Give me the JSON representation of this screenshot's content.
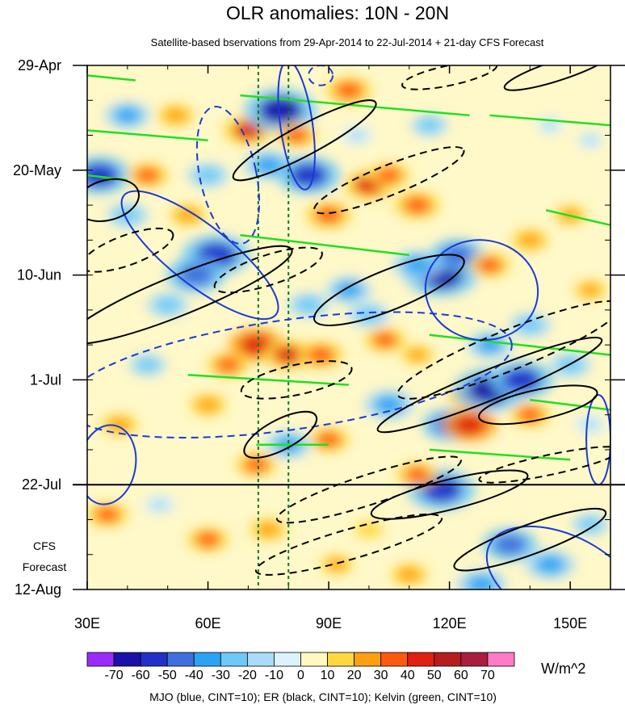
{
  "chart_data": {
    "type": "heatmap",
    "title": "OLR anomalies: 10N - 20N",
    "subtitle": "Satellite-based bservations from 29-Apr-2014 to 22-Jul-2014 + 21-day CFS Forecast",
    "x_axis": {
      "range": [
        30,
        160
      ],
      "ticks": [
        30,
        60,
        90,
        120,
        150
      ],
      "tick_labels": [
        "30E",
        "60E",
        "90E",
        "120E",
        "150E"
      ]
    },
    "y_axis": {
      "range_days": [
        0,
        105
      ],
      "tick_days": [
        0,
        21,
        42,
        63,
        84,
        105
      ],
      "tick_labels": [
        "29-Apr",
        "20-May",
        "10-Jun",
        "1-Jul",
        "22-Jul",
        "12-Aug"
      ],
      "observation_end_day": 84
    },
    "forecast_label": [
      "CFS",
      "Forecast"
    ],
    "reference_longitudes": [
      72.5,
      80
    ],
    "colorbar": {
      "labels": [
        "-70",
        "-60",
        "-50",
        "-40",
        "-30",
        "-20",
        "-10",
        "0",
        "10",
        "20",
        "30",
        "40",
        "50",
        "60",
        "70"
      ],
      "colors": [
        "#9a2cff",
        "#1a12a8",
        "#2030c8",
        "#3f6fdc",
        "#2aa4f2",
        "#6ec8f8",
        "#a8dcf8",
        "#ddf2fc",
        "#fff8c0",
        "#ffd840",
        "#ffa010",
        "#ff5a10",
        "#e02010",
        "#b41e1e",
        "#a81e3c",
        "#ff7ac8"
      ],
      "units": "W/m^2"
    },
    "footer": "MJO (blue, CINT=10); ER (black, CINT=10); Kelvin (green, CINT=10)",
    "filter_colors": {
      "MJO": "#1a3ad8",
      "ER": "#000000",
      "Kelvin": "#20e020"
    },
    "anomaly_blobs": [
      {
        "lon": 40,
        "day": 10,
        "v": -35
      },
      {
        "lon": 33,
        "day": 22,
        "v": -55
      },
      {
        "lon": 40,
        "day": 30,
        "v": -30
      },
      {
        "lon": 45,
        "day": 22,
        "v": 30
      },
      {
        "lon": 52,
        "day": 10,
        "v": 25
      },
      {
        "lon": 62,
        "day": 38,
        "v": -60
      },
      {
        "lon": 57,
        "day": 42,
        "v": -50
      },
      {
        "lon": 50,
        "day": 48,
        "v": -30
      },
      {
        "lon": 60,
        "day": 22,
        "v": -30
      },
      {
        "lon": 55,
        "day": 30,
        "v": 25
      },
      {
        "lon": 70,
        "day": 13,
        "v": 40
      },
      {
        "lon": 75,
        "day": 20,
        "v": -40
      },
      {
        "lon": 78,
        "day": 9,
        "v": -65
      },
      {
        "lon": 82,
        "day": 14,
        "v": 30
      },
      {
        "lon": 85,
        "day": 22,
        "v": -55
      },
      {
        "lon": 90,
        "day": 30,
        "v": 35
      },
      {
        "lon": 95,
        "day": 5,
        "v": 35
      },
      {
        "lon": 97,
        "day": 14,
        "v": -20
      },
      {
        "lon": 100,
        "day": 24,
        "v": 40
      },
      {
        "lon": 105,
        "day": 22,
        "v": 30
      },
      {
        "lon": 112,
        "day": 28,
        "v": 35
      },
      {
        "lon": 115,
        "day": 12,
        "v": -25
      },
      {
        "lon": 118,
        "day": 42,
        "v": -65
      },
      {
        "lon": 112,
        "day": 40,
        "v": -40
      },
      {
        "lon": 122,
        "day": 38,
        "v": -45
      },
      {
        "lon": 130,
        "day": 40,
        "v": 30
      },
      {
        "lon": 140,
        "day": 35,
        "v": 25
      },
      {
        "lon": 150,
        "day": 30,
        "v": 20
      },
      {
        "lon": 145,
        "day": 12,
        "v": -15
      },
      {
        "lon": 72,
        "day": 56,
        "v": 45
      },
      {
        "lon": 80,
        "day": 58,
        "v": 40
      },
      {
        "lon": 88,
        "day": 58,
        "v": 35
      },
      {
        "lon": 65,
        "day": 60,
        "v": 30
      },
      {
        "lon": 95,
        "day": 45,
        "v": -35
      },
      {
        "lon": 100,
        "day": 50,
        "v": -30
      },
      {
        "lon": 85,
        "day": 48,
        "v": -30
      },
      {
        "lon": 104,
        "day": 55,
        "v": 30
      },
      {
        "lon": 112,
        "day": 58,
        "v": 20
      },
      {
        "lon": 130,
        "day": 56,
        "v": -35
      },
      {
        "lon": 140,
        "day": 52,
        "v": -30
      },
      {
        "lon": 150,
        "day": 60,
        "v": -30
      },
      {
        "lon": 105,
        "day": 68,
        "v": -40
      },
      {
        "lon": 120,
        "day": 72,
        "v": -45
      },
      {
        "lon": 125,
        "day": 66,
        "v": 35
      },
      {
        "lon": 130,
        "day": 65,
        "v": -65
      },
      {
        "lon": 138,
        "day": 63,
        "v": -55
      },
      {
        "lon": 125,
        "day": 72,
        "v": 45
      },
      {
        "lon": 140,
        "day": 70,
        "v": 30
      },
      {
        "lon": 118,
        "day": 85,
        "v": -60
      },
      {
        "lon": 112,
        "day": 82,
        "v": 30
      },
      {
        "lon": 90,
        "day": 75,
        "v": 30
      },
      {
        "lon": 80,
        "day": 76,
        "v": -35
      },
      {
        "lon": 72,
        "day": 80,
        "v": 30
      },
      {
        "lon": 60,
        "day": 68,
        "v": 25
      },
      {
        "lon": 45,
        "day": 60,
        "v": -25
      },
      {
        "lon": 38,
        "day": 72,
        "v": 25
      },
      {
        "lon": 35,
        "day": 90,
        "v": 30
      },
      {
        "lon": 48,
        "day": 88,
        "v": -20
      },
      {
        "lon": 60,
        "day": 95,
        "v": 30
      },
      {
        "lon": 75,
        "day": 93,
        "v": 25
      },
      {
        "lon": 92,
        "day": 100,
        "v": 20
      },
      {
        "lon": 100,
        "day": 93,
        "v": 15
      },
      {
        "lon": 135,
        "day": 96,
        "v": -45
      },
      {
        "lon": 145,
        "day": 100,
        "v": -40
      },
      {
        "lon": 128,
        "day": 104,
        "v": -40
      },
      {
        "lon": 110,
        "day": 102,
        "v": 25
      },
      {
        "lon": 155,
        "day": 92,
        "v": -25
      },
      {
        "lon": 155,
        "day": 15,
        "v": -15
      },
      {
        "lon": 155,
        "day": 45,
        "v": 20
      },
      {
        "lon": 155,
        "day": 72,
        "v": -20
      }
    ],
    "mjo_contours": [
      {
        "lon": 82,
        "day": 12,
        "rlon": 4,
        "rday": 13,
        "rot": -8,
        "dash": false
      },
      {
        "lon": 58,
        "day": 38,
        "rlon": 24,
        "rday": 6,
        "rot": 38,
        "dash": false
      },
      {
        "lon": 65,
        "day": 22,
        "rlon": 7,
        "rday": 14,
        "rot": -12,
        "dash": true
      },
      {
        "lon": 80,
        "day": 62,
        "rlon": 56,
        "rday": 11,
        "rot": -8,
        "dash": true
      },
      {
        "lon": 128,
        "day": 45,
        "rlon": 14,
        "rday": 10,
        "rot": 8,
        "dash": false
      },
      {
        "lon": 35,
        "day": 80,
        "rlon": 7,
        "rday": 8,
        "rot": 10,
        "dash": false
      },
      {
        "lon": 148,
        "day": 103,
        "rlon": 20,
        "rday": 9,
        "rot": 25,
        "dash": false
      },
      {
        "lon": 157,
        "day": 75,
        "rlon": 3,
        "rday": 9,
        "rot": 0,
        "dash": false
      },
      {
        "lon": 88,
        "day": 2,
        "rlon": 3,
        "rday": 2,
        "rot": 0,
        "dash": true
      }
    ],
    "er_contours": [
      {
        "lon": 35,
        "day": 27,
        "rlon": 8,
        "rday": 4,
        "rot": -15,
        "dash": false
      },
      {
        "lon": 84,
        "day": 15,
        "rlon": 20,
        "rday": 3,
        "rot": -28,
        "dash": false
      },
      {
        "lon": 105,
        "day": 23,
        "rlon": 20,
        "rday": 3,
        "rot": -22,
        "dash": true
      },
      {
        "lon": 147,
        "day": 1,
        "rlon": 14,
        "rday": 2,
        "rot": -18,
        "dash": false
      },
      {
        "lon": 120,
        "day": 2,
        "rlon": 12,
        "rday": 2,
        "rot": -12,
        "dash": true
      },
      {
        "lon": 40,
        "day": 37,
        "rlon": 12,
        "rday": 3,
        "rot": -20,
        "dash": true
      },
      {
        "lon": 53,
        "day": 46,
        "rlon": 30,
        "rday": 4,
        "rot": -22,
        "dash": false
      },
      {
        "lon": 75,
        "day": 41,
        "rlon": 14,
        "rday": 3,
        "rot": -18,
        "dash": true
      },
      {
        "lon": 105,
        "day": 45,
        "rlon": 20,
        "rday": 4,
        "rot": -22,
        "dash": false
      },
      {
        "lon": 135,
        "day": 57,
        "rlon": 30,
        "rday": 4,
        "rot": -22,
        "dash": true
      },
      {
        "lon": 82,
        "day": 63,
        "rlon": 14,
        "rday": 3,
        "rot": -12,
        "dash": true
      },
      {
        "lon": 78,
        "day": 74,
        "rlon": 10,
        "rday": 3,
        "rot": -28,
        "dash": false
      },
      {
        "lon": 130,
        "day": 64,
        "rlon": 30,
        "rday": 3,
        "rot": -22,
        "dash": false
      },
      {
        "lon": 100,
        "day": 85,
        "rlon": 24,
        "rday": 3,
        "rot": -18,
        "dash": true
      },
      {
        "lon": 120,
        "day": 86,
        "rlon": 20,
        "rday": 3,
        "rot": -14,
        "dash": false
      },
      {
        "lon": 95,
        "day": 96,
        "rlon": 24,
        "rday": 3,
        "rot": -16,
        "dash": true
      },
      {
        "lon": 140,
        "day": 95,
        "rlon": 20,
        "rday": 3,
        "rot": -20,
        "dash": false
      },
      {
        "lon": 142,
        "day": 68,
        "rlon": 15,
        "rday": 3,
        "rot": -12,
        "dash": false
      },
      {
        "lon": 145,
        "day": 80,
        "rlon": 18,
        "rday": 2,
        "rot": -12,
        "dash": true
      }
    ],
    "kelvin_segments": [
      {
        "lon1": 30,
        "day1": 2,
        "lon2": 42,
        "day2": 3
      },
      {
        "lon1": 68,
        "day1": 6,
        "lon2": 125,
        "day2": 10
      },
      {
        "lon1": 30,
        "day1": 13,
        "lon2": 60,
        "day2": 15
      },
      {
        "lon1": 130,
        "day1": 10,
        "lon2": 160,
        "day2": 12
      },
      {
        "lon1": 30,
        "day1": 22,
        "lon2": 40,
        "day2": 23
      },
      {
        "lon1": 144,
        "day1": 29,
        "lon2": 160,
        "day2": 32
      },
      {
        "lon1": 68,
        "day1": 34,
        "lon2": 110,
        "day2": 38
      },
      {
        "lon1": 115,
        "day1": 54,
        "lon2": 160,
        "day2": 58
      },
      {
        "lon1": 55,
        "day1": 62,
        "lon2": 95,
        "day2": 64
      },
      {
        "lon1": 140,
        "day1": 67,
        "lon2": 160,
        "day2": 69
      },
      {
        "lon1": 115,
        "day1": 77,
        "lon2": 150,
        "day2": 79
      },
      {
        "lon1": 72,
        "day1": 76,
        "lon2": 90,
        "day2": 76
      }
    ]
  }
}
